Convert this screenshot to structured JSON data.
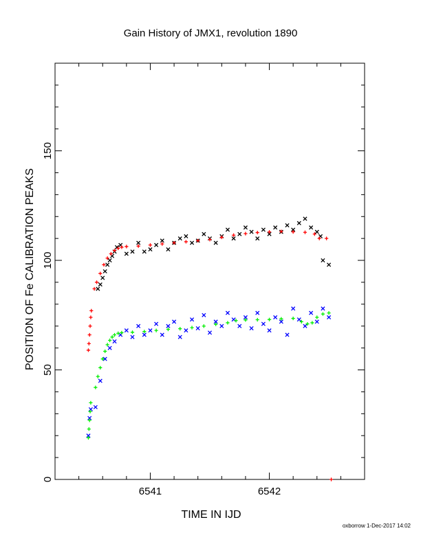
{
  "chart_data": {
    "type": "scatter",
    "title": "Gain History of JMX1, revolution 1890",
    "xlabel": "TIME IN IJD",
    "ylabel": "POSITION OF Fe CALIBRATION PEAKS",
    "credit": "oxborrow 1-Dec-2017 14:02",
    "xlim": [
      6540.2,
      6542.8
    ],
    "ylim": [
      0,
      190
    ],
    "x_ticks": [
      "6541",
      "6542"
    ],
    "y_ticks": [
      "0",
      "50",
      "100",
      "150"
    ],
    "grid": false,
    "series": [
      {
        "color": "#000000",
        "marker": "x",
        "points": [
          [
            6540.56,
            87
          ],
          [
            6540.58,
            89
          ],
          [
            6540.6,
            92
          ],
          [
            6540.62,
            95
          ],
          [
            6540.64,
            98
          ],
          [
            6540.66,
            100
          ],
          [
            6540.68,
            102
          ],
          [
            6540.7,
            104
          ],
          [
            6540.72,
            106
          ],
          [
            6540.75,
            107
          ],
          [
            6540.8,
            103
          ],
          [
            6540.85,
            104
          ],
          [
            6540.9,
            108
          ],
          [
            6540.95,
            104
          ],
          [
            6541.0,
            105
          ],
          [
            6541.05,
            107
          ],
          [
            6541.1,
            109
          ],
          [
            6541.15,
            105
          ],
          [
            6541.2,
            108
          ],
          [
            6541.25,
            110
          ],
          [
            6541.3,
            111
          ],
          [
            6541.35,
            108
          ],
          [
            6541.4,
            109
          ],
          [
            6541.45,
            112
          ],
          [
            6541.5,
            110
          ],
          [
            6541.55,
            108
          ],
          [
            6541.6,
            111
          ],
          [
            6541.65,
            114
          ],
          [
            6541.7,
            110
          ],
          [
            6541.75,
            112
          ],
          [
            6541.8,
            115
          ],
          [
            6541.85,
            113
          ],
          [
            6541.9,
            110
          ],
          [
            6541.95,
            114
          ],
          [
            6542.0,
            112
          ],
          [
            6542.05,
            115
          ],
          [
            6542.1,
            113
          ],
          [
            6542.15,
            116
          ],
          [
            6542.2,
            114
          ],
          [
            6542.25,
            117
          ],
          [
            6542.3,
            119
          ],
          [
            6542.35,
            115
          ],
          [
            6542.4,
            113
          ],
          [
            6542.43,
            111
          ],
          [
            6542.45,
            100
          ],
          [
            6542.5,
            98
          ]
        ]
      },
      {
        "color": "#ff0000",
        "marker": "+",
        "points": [
          [
            6540.48,
            59
          ],
          [
            6540.485,
            62
          ],
          [
            6540.49,
            66
          ],
          [
            6540.495,
            70
          ],
          [
            6540.5,
            74
          ],
          [
            6540.505,
            77
          ],
          [
            6540.53,
            87
          ],
          [
            6540.55,
            90
          ],
          [
            6540.58,
            94
          ],
          [
            6540.61,
            98
          ],
          [
            6540.64,
            101
          ],
          [
            6540.67,
            103
          ],
          [
            6540.7,
            104.5
          ],
          [
            6540.73,
            105.5
          ],
          [
            6540.76,
            106
          ],
          [
            6540.8,
            106.3
          ],
          [
            6540.9,
            106.5
          ],
          [
            6541.0,
            107
          ],
          [
            6541.1,
            107.5
          ],
          [
            6541.2,
            108
          ],
          [
            6541.3,
            108.5
          ],
          [
            6541.4,
            109
          ],
          [
            6541.5,
            109.5
          ],
          [
            6541.6,
            110.5
          ],
          [
            6541.7,
            111.5
          ],
          [
            6541.8,
            112.2
          ],
          [
            6541.9,
            112.7
          ],
          [
            6542.0,
            113
          ],
          [
            6542.1,
            113.2
          ],
          [
            6542.2,
            113
          ],
          [
            6542.3,
            112.8
          ],
          [
            6542.38,
            112
          ],
          [
            6542.42,
            110
          ],
          [
            6542.48,
            110
          ],
          [
            6542.52,
            0
          ]
        ]
      },
      {
        "color": "#0000ff",
        "marker": "x",
        "points": [
          [
            6540.48,
            20
          ],
          [
            6540.49,
            28
          ],
          [
            6540.5,
            32
          ],
          [
            6540.54,
            33
          ],
          [
            6540.58,
            45
          ],
          [
            6540.62,
            55
          ],
          [
            6540.66,
            60
          ],
          [
            6540.7,
            63
          ],
          [
            6540.75,
            66
          ],
          [
            6540.8,
            68
          ],
          [
            6540.85,
            65
          ],
          [
            6540.9,
            70
          ],
          [
            6540.95,
            66
          ],
          [
            6541.0,
            68
          ],
          [
            6541.05,
            71
          ],
          [
            6541.1,
            66
          ],
          [
            6541.15,
            70
          ],
          [
            6541.2,
            72
          ],
          [
            6541.25,
            65
          ],
          [
            6541.3,
            68
          ],
          [
            6541.35,
            73
          ],
          [
            6541.4,
            69
          ],
          [
            6541.45,
            75
          ],
          [
            6541.5,
            67
          ],
          [
            6541.55,
            72
          ],
          [
            6541.6,
            70
          ],
          [
            6541.65,
            76
          ],
          [
            6541.7,
            73
          ],
          [
            6541.75,
            70
          ],
          [
            6541.8,
            74
          ],
          [
            6541.85,
            69
          ],
          [
            6541.9,
            76
          ],
          [
            6541.95,
            71
          ],
          [
            6542.0,
            68
          ],
          [
            6542.05,
            74
          ],
          [
            6542.1,
            72
          ],
          [
            6542.15,
            66
          ],
          [
            6542.2,
            78
          ],
          [
            6542.25,
            73
          ],
          [
            6542.3,
            70
          ],
          [
            6542.35,
            76
          ],
          [
            6542.4,
            72
          ],
          [
            6542.45,
            78
          ],
          [
            6542.5,
            74
          ]
        ]
      },
      {
        "color": "#00ee00",
        "marker": "+",
        "points": [
          [
            6540.48,
            19
          ],
          [
            6540.485,
            23
          ],
          [
            6540.49,
            27
          ],
          [
            6540.495,
            31
          ],
          [
            6540.5,
            35
          ],
          [
            6540.54,
            42
          ],
          [
            6540.56,
            47
          ],
          [
            6540.58,
            51
          ],
          [
            6540.6,
            55
          ],
          [
            6540.62,
            58.5
          ],
          [
            6540.64,
            61.5
          ],
          [
            6540.66,
            63.5
          ],
          [
            6540.68,
            65
          ],
          [
            6540.7,
            66
          ],
          [
            6540.73,
            66.7
          ],
          [
            6540.76,
            67
          ],
          [
            6540.85,
            67.2
          ],
          [
            6540.95,
            67.5
          ],
          [
            6541.05,
            68
          ],
          [
            6541.15,
            68.5
          ],
          [
            6541.25,
            68.8
          ],
          [
            6541.35,
            69.3
          ],
          [
            6541.45,
            70
          ],
          [
            6541.55,
            70.8
          ],
          [
            6541.65,
            71.5
          ],
          [
            6541.72,
            72.5
          ],
          [
            6541.8,
            72.8
          ],
          [
            6541.9,
            72.9
          ],
          [
            6542.0,
            73
          ],
          [
            6542.1,
            73.3
          ],
          [
            6542.2,
            73.5
          ],
          [
            6542.27,
            72
          ],
          [
            6542.32,
            71
          ],
          [
            6542.36,
            71.5
          ],
          [
            6542.4,
            74
          ],
          [
            6542.45,
            75.5
          ],
          [
            6542.5,
            76
          ]
        ]
      }
    ]
  }
}
